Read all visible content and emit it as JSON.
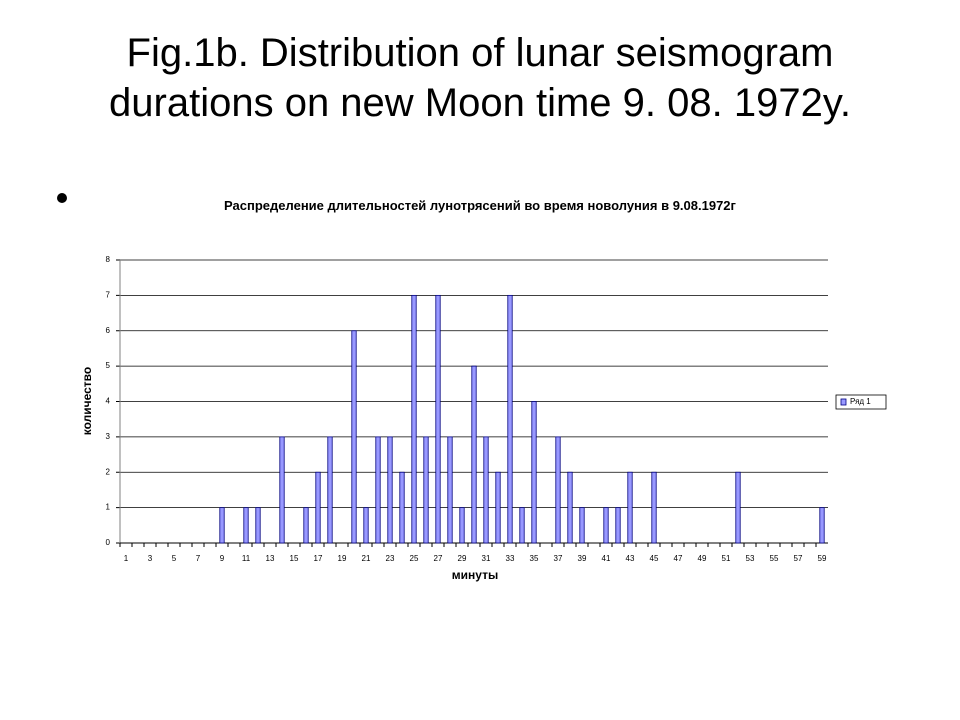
{
  "slide_title": "Fig.1b. Distribution of lunar seismogram durations on new Moon time 9. 08. 1972y.",
  "chart_data": {
    "type": "bar",
    "title": "Распределение длительностей лунотрясений во время новолуния в 9.08.1972г",
    "x_label": "минуты",
    "y_label": "количество",
    "categories": [
      "1",
      null,
      "3",
      null,
      "5",
      null,
      "7",
      null,
      "9",
      null,
      "11",
      null,
      "13",
      null,
      "15",
      null,
      "17",
      null,
      "19",
      null,
      "21",
      null,
      "23",
      null,
      "25",
      null,
      "27",
      null,
      "29",
      null,
      "31",
      null,
      "33",
      null,
      "35",
      null,
      "37",
      null,
      "39",
      null,
      "41",
      null,
      "43",
      null,
      "45",
      null,
      "47",
      null,
      "49",
      null,
      "51",
      null,
      "53",
      null,
      "55",
      null,
      "57",
      null,
      "59"
    ],
    "series": [
      {
        "name": "Ряд 1",
        "color": "#9999ff",
        "values": [
          0,
          0,
          0,
          0,
          0,
          0,
          0,
          0,
          1,
          0,
          1,
          1,
          0,
          3,
          0,
          1,
          2,
          3,
          0,
          6,
          1,
          3,
          3,
          2,
          7,
          3,
          7,
          3,
          1,
          5,
          3,
          2,
          7,
          1,
          4,
          0,
          3,
          2,
          1,
          0,
          1,
          1,
          2,
          0,
          2,
          0,
          0,
          0,
          0,
          0,
          0,
          2,
          0,
          0,
          0,
          0,
          0,
          0,
          1
        ]
      }
    ],
    "ylim": [
      0,
      8
    ],
    "yticks": [
      0,
      1,
      2,
      3,
      4,
      5,
      6,
      7,
      8
    ],
    "grid": true,
    "legend": "right"
  }
}
